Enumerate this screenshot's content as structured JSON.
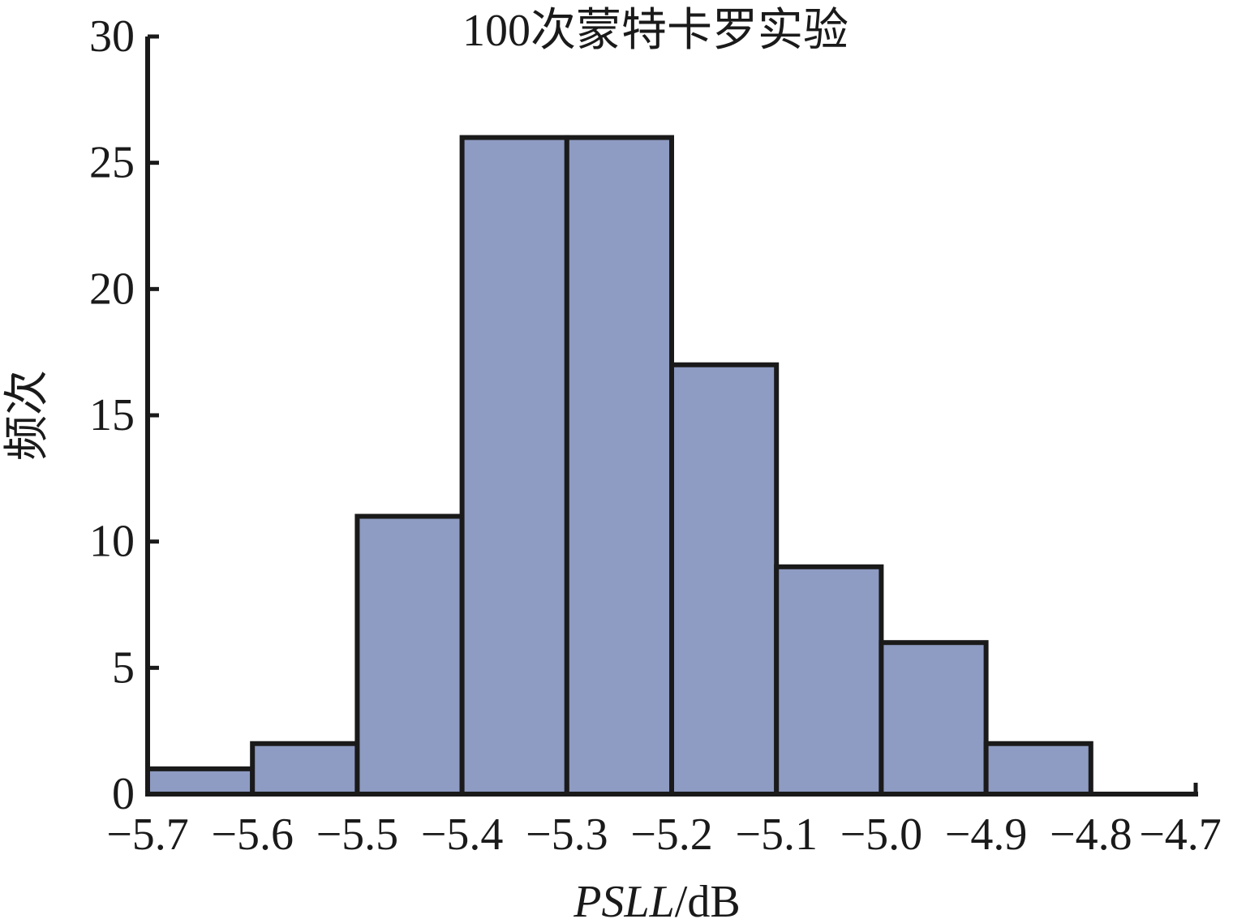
{
  "chart_data": {
    "type": "bar",
    "title": "100次蒙特卡罗实验",
    "xlabel_italic": "PSLL",
    "xlabel_unit": "/dB",
    "ylabel": "频次",
    "bin_edges": [
      -5.7,
      -5.6,
      -5.5,
      -5.4,
      -5.3,
      -5.2,
      -5.1,
      -5.0,
      -4.9,
      -4.8,
      -4.7
    ],
    "values": [
      1,
      2,
      11,
      26,
      26,
      17,
      9,
      6,
      2,
      0
    ],
    "xlim": [
      -5.7,
      -4.7
    ],
    "ylim": [
      0,
      30
    ],
    "x_ticks": [
      "−5.7",
      "−5.6",
      "−5.5",
      "−5.4",
      "−5.3",
      "−5.2",
      "−5.1",
      "−5.0",
      "−4.9",
      "−4.8",
      "−4.7"
    ],
    "y_ticks": [
      "0",
      "5",
      "10",
      "15",
      "20",
      "25",
      "30"
    ],
    "bar_color": "#8e9bc2",
    "edge_color": "#1a1a1a",
    "grid": false
  }
}
